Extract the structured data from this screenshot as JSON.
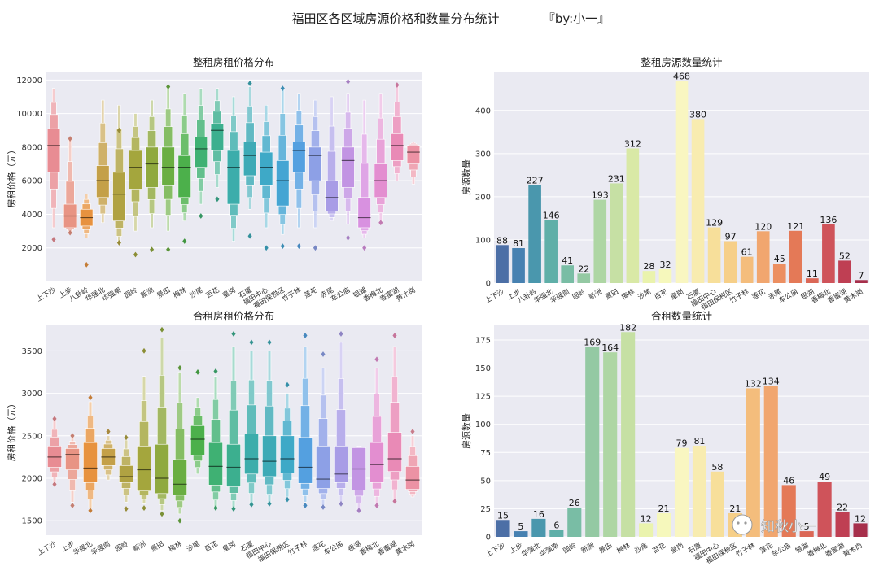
{
  "figure": {
    "suptitle": "福田区各区域房源价格和数量分布统计",
    "byline": "『by:小一』",
    "watermark": "知秋小一"
  },
  "chart_data": [
    {
      "type": "boxen",
      "title": "整租房租价格分布",
      "ylabel": "房租价格（元）",
      "ylim": [
        0,
        12500
      ],
      "yticks": [
        2000,
        4000,
        6000,
        8000,
        10000,
        12000
      ],
      "categories": [
        "上下沙",
        "上步",
        "八卦岭",
        "华强北",
        "华强南",
        "园岭",
        "新洲",
        "景田",
        "梅林",
        "沙尾",
        "百花",
        "皇岗",
        "石厦",
        "福田中心",
        "福田保税区",
        "竹子林",
        "莲花",
        "赤尾",
        "车公庙",
        "银湖",
        "香梅北",
        "香蜜湖",
        "黄木岗"
      ],
      "colors": [
        "#e88c93",
        "#e89484",
        "#e7923f",
        "#c4a048",
        "#b0a242",
        "#a4a63d",
        "#8fa93f",
        "#6aae42",
        "#4cb04b",
        "#3fb173",
        "#3caf8f",
        "#3cadab",
        "#3daab6",
        "#3ea9c7",
        "#45a5d3",
        "#54a0e0",
        "#8da0e6",
        "#a89ce6",
        "#c294e3",
        "#d891e0",
        "#e38ed0",
        "#e98ab6",
        "#ec92a4"
      ],
      "median": [
        8100,
        3900,
        3800,
        6000,
        5200,
        6800,
        7000,
        6800,
        6800,
        7900,
        9000,
        6800,
        7500,
        6800,
        6000,
        7800,
        7500,
        5000,
        7200,
        3800,
        6000,
        8100,
        7700
      ],
      "q1": [
        6500,
        3200,
        3300,
        5000,
        3600,
        5500,
        5600,
        5700,
        5000,
        6800,
        7800,
        4600,
        6300,
        5700,
        4500,
        6500,
        6000,
        4200,
        5600,
        3200,
        5000,
        7200,
        7000
      ],
      "q3": [
        9100,
        4600,
        4300,
        6900,
        6500,
        7800,
        8000,
        8000,
        7500,
        8600,
        9400,
        7800,
        8300,
        7700,
        7200,
        8300,
        8000,
        6000,
        8000,
        5000,
        7000,
        8800,
        8100
      ],
      "whisker_low": [
        3200,
        2900,
        2600,
        3500,
        2200,
        3000,
        3200,
        3000,
        3600,
        4600,
        5600,
        2400,
        4300,
        3200,
        2800,
        3200,
        3200,
        3600,
        3400,
        2600,
        3600,
        6000,
        5800
      ],
      "whisker_high": [
        11500,
        8500,
        5200,
        10800,
        10500,
        10000,
        10800,
        11500,
        11200,
        11500,
        11500,
        11000,
        11600,
        10500,
        11500,
        11200,
        10800,
        11000,
        11200,
        10800,
        11200,
        11700,
        8300
      ],
      "outliers_low": [
        2500,
        2900,
        1000,
        null,
        2300,
        1600,
        1900,
        1900,
        2400,
        3900,
        4900,
        null,
        2700,
        2000,
        2100,
        2100,
        2000,
        null,
        2600,
        2000,
        3500,
        null,
        null
      ],
      "outliers_high": [
        null,
        8500,
        null,
        null,
        9000,
        null,
        null,
        11600,
        null,
        null,
        null,
        null,
        11800,
        null,
        11500,
        null,
        null,
        null,
        11900,
        null,
        null,
        11700,
        null
      ]
    },
    {
      "type": "bar",
      "title": "整租房源数量统计",
      "ylabel": "房源数量",
      "ylim": [
        0,
        490
      ],
      "yticks": [
        0,
        100,
        200,
        300,
        400
      ],
      "categories": [
        "上下沙",
        "上步",
        "八卦岭",
        "华强北",
        "华强南",
        "园岭",
        "新洲",
        "景田",
        "梅林",
        "沙尾",
        "百花",
        "皇岗",
        "石厦",
        "福田中心",
        "福田保税区",
        "竹子林",
        "莲花",
        "赤尾",
        "车公庙",
        "银湖",
        "香梅北",
        "香蜜湖",
        "黄木岗"
      ],
      "values": [
        88,
        81,
        227,
        146,
        41,
        22,
        193,
        231,
        312,
        28,
        32,
        468,
        380,
        129,
        97,
        61,
        120,
        45,
        121,
        11,
        136,
        52,
        7
      ],
      "colors": [
        "#4c6fa6",
        "#4781b1",
        "#4a97ad",
        "#5fafa8",
        "#79bda5",
        "#94c9a3",
        "#aed6a4",
        "#c6e0a4",
        "#d9e9a6",
        "#eaf3ad",
        "#f6f8bc",
        "#f9f6c1",
        "#f8ecb0",
        "#f7df9a",
        "#f6cf88",
        "#f4bd7c",
        "#f1a66f",
        "#ec8f61",
        "#e47957",
        "#db6756",
        "#cf535a",
        "#bf3f53",
        "#a62f4b"
      ]
    },
    {
      "type": "boxen",
      "title": "合租房租价格分布",
      "ylabel": "房租价格（元）",
      "ylim": [
        1330,
        3800
      ],
      "yticks": [
        1500,
        2000,
        2500,
        3000,
        3500
      ],
      "categories": [
        "上下沙",
        "上步",
        "华强北",
        "华强南",
        "园岭",
        "新洲",
        "景田",
        "梅林",
        "沙尾",
        "百花",
        "皇岗",
        "石厦",
        "福田中心",
        "福田保税区",
        "竹子林",
        "莲花",
        "车公庙",
        "银湖",
        "香梅北",
        "香蜜湖",
        "黄木岗"
      ],
      "colors": [
        "#e88c93",
        "#e89484",
        "#e7923f",
        "#c4a048",
        "#b0a242",
        "#a4a63d",
        "#8fa93f",
        "#6aae42",
        "#4cb04b",
        "#3fb173",
        "#3caf8f",
        "#3cadab",
        "#3daab6",
        "#3ea9c7",
        "#54a0e0",
        "#8da0e6",
        "#a89ce6",
        "#c294e3",
        "#e38ed0",
        "#e98ab6",
        "#ec92a4"
      ],
      "median": [
        2250,
        2280,
        2120,
        2250,
        2020,
        2100,
        2000,
        1930,
        2460,
        2140,
        2130,
        2230,
        2200,
        2230,
        2130,
        1990,
        2050,
        2110,
        2160,
        2230,
        1980
      ],
      "q1": [
        2130,
        2100,
        1950,
        2150,
        1950,
        1850,
        1820,
        1800,
        2270,
        1920,
        1900,
        2050,
        2020,
        2060,
        1940,
        1880,
        1950,
        1860,
        1950,
        2080,
        1870
      ],
      "q3": [
        2380,
        2350,
        2420,
        2350,
        2150,
        2380,
        2400,
        2220,
        2620,
        2420,
        2400,
        2520,
        2500,
        2500,
        2480,
        2380,
        2380,
        2360,
        2420,
        2540,
        2140
      ],
      "whisker_low": [
        1950,
        1720,
        1650,
        1980,
        1720,
        1700,
        1620,
        1580,
        2050,
        1650,
        1650,
        1700,
        1700,
        1780,
        1720,
        1680,
        1720,
        1630,
        1700,
        1750,
        1780
      ],
      "whisker_high": [
        2680,
        2480,
        2900,
        2500,
        2450,
        3200,
        3650,
        3250,
        2950,
        3200,
        3550,
        3500,
        3500,
        3000,
        3550,
        3300,
        3600,
        2380,
        3300,
        3550,
        2500
      ],
      "outliers_low": [
        1930,
        1680,
        1620,
        null,
        1640,
        1650,
        1580,
        1500,
        null,
        1650,
        1640,
        1690,
        1700,
        1750,
        1680,
        1660,
        1700,
        1620,
        1680,
        1730,
        null
      ],
      "outliers_high": [
        2700,
        2500,
        2950,
        2550,
        2480,
        3500,
        3750,
        3300,
        3250,
        3260,
        3700,
        3600,
        3600,
        3100,
        3680,
        3460,
        3700,
        null,
        3400,
        3680,
        2550
      ]
    },
    {
      "type": "bar",
      "title": "合租数量统计",
      "ylabel": "房源数量",
      "ylim": [
        0,
        188
      ],
      "yticks": [
        0,
        25,
        50,
        75,
        100,
        125,
        150,
        175
      ],
      "categories": [
        "上下沙",
        "上步",
        "华强北",
        "华强南",
        "园岭",
        "新洲",
        "景田",
        "梅林",
        "沙尾",
        "百花",
        "皇岗",
        "石厦",
        "福田中心",
        "福田保税区",
        "竹子林",
        "莲花",
        "车公庙",
        "银湖",
        "香梅北",
        "香蜜湖",
        "黄木岗"
      ],
      "values": [
        15,
        5,
        16,
        6,
        26,
        169,
        164,
        182,
        12,
        21,
        79,
        81,
        58,
        21,
        132,
        134,
        46,
        5,
        49,
        22,
        12
      ],
      "colors": [
        "#4c6fa6",
        "#4781b1",
        "#4a97ad",
        "#5fafa8",
        "#79bda5",
        "#94c9a3",
        "#aed6a4",
        "#c6e0a4",
        "#eaf3ad",
        "#f6f8bc",
        "#f9f6c1",
        "#f8ecb0",
        "#f7df9a",
        "#f6cf88",
        "#f4bd7c",
        "#f1a66f",
        "#e47957",
        "#db6756",
        "#cf535a",
        "#bf3f53",
        "#a62f4b"
      ]
    }
  ]
}
